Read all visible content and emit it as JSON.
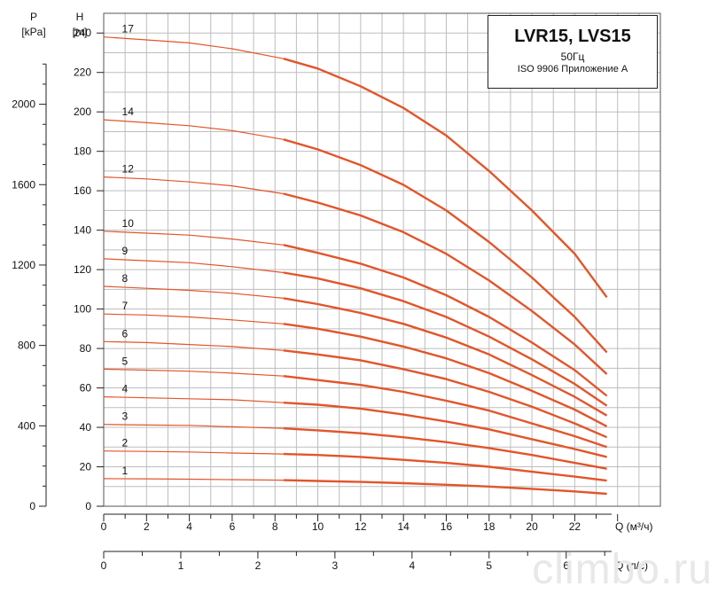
{
  "title": {
    "main": "LVR15, LVS15",
    "freq": "50Гц",
    "standard": "ISO 9906 Приложение А"
  },
  "watermark": "climbo.ru",
  "axes": {
    "p_label": "P",
    "p_unit": "[kPa]",
    "h_label": "H",
    "h_unit": "[m]",
    "q_label": "Q (м³/ч)",
    "q2_label": "Q (л/с)"
  },
  "chart_data": {
    "type": "line",
    "x_unit": "Q (м³/ч)",
    "y_unit": "H [m]",
    "xlim": [
      0,
      26
    ],
    "ylim": [
      0,
      250
    ],
    "xticks": [
      0,
      2,
      4,
      6,
      8,
      10,
      12,
      14,
      16,
      18,
      20,
      22
    ],
    "yticks": [
      0,
      20,
      40,
      60,
      80,
      100,
      120,
      140,
      160,
      180,
      200,
      220,
      240
    ],
    "p_ticks": [
      0,
      400,
      800,
      1200,
      1600,
      2000
    ],
    "q2_ticks": [
      0,
      1,
      2,
      3,
      4,
      5,
      6
    ],
    "grid": true,
    "series": [
      {
        "name": "17",
        "x": [
          0,
          2,
          4,
          6,
          8.4,
          10,
          12,
          14,
          16,
          18,
          20,
          22,
          23.5
        ],
        "y": [
          238,
          236.5,
          235,
          232,
          227,
          222,
          213,
          202,
          188,
          170,
          150,
          128,
          106
        ]
      },
      {
        "name": "14",
        "x": [
          0,
          2,
          4,
          6,
          8.4,
          10,
          12,
          14,
          16,
          18,
          20,
          22,
          23.5
        ],
        "y": [
          196,
          194.5,
          193,
          190.5,
          186,
          181,
          173,
          163,
          150,
          134,
          116,
          96,
          78
        ]
      },
      {
        "name": "12",
        "x": [
          0,
          2,
          4,
          6,
          8.4,
          10,
          12,
          14,
          16,
          18,
          20,
          22,
          23.5
        ],
        "y": [
          167,
          166,
          164.5,
          162.5,
          158.5,
          154,
          147.5,
          139,
          128,
          114.5,
          99,
          82,
          67
        ]
      },
      {
        "name": "10",
        "x": [
          0,
          2,
          4,
          6,
          8.4,
          10,
          12,
          14,
          16,
          18,
          20,
          22,
          23.5
        ],
        "y": [
          139.5,
          138.5,
          137.5,
          135.5,
          132.5,
          128.5,
          123,
          116,
          107,
          96,
          83,
          69,
          56
        ]
      },
      {
        "name": "9",
        "x": [
          0,
          2,
          4,
          6,
          8.4,
          10,
          12,
          14,
          16,
          18,
          20,
          22,
          23.5
        ],
        "y": [
          125.5,
          124.5,
          123.5,
          121.5,
          118.5,
          115.5,
          110.5,
          104,
          96,
          86,
          74.5,
          62,
          51
        ]
      },
      {
        "name": "8",
        "x": [
          0,
          2,
          4,
          6,
          8.4,
          10,
          12,
          14,
          16,
          18,
          20,
          22,
          23.5
        ],
        "y": [
          111.5,
          110.5,
          109.5,
          108,
          105.5,
          102.5,
          98,
          92.5,
          85.5,
          77,
          66.5,
          55.5,
          46
        ]
      },
      {
        "name": "7",
        "x": [
          0,
          2,
          4,
          6,
          8.4,
          10,
          12,
          14,
          16,
          18,
          20,
          22,
          23.5
        ],
        "y": [
          97.5,
          97,
          96,
          94.5,
          92.5,
          90,
          86,
          81,
          75,
          67.5,
          58.5,
          49,
          40.5
        ]
      },
      {
        "name": "6",
        "x": [
          0,
          2,
          4,
          6,
          8.4,
          10,
          12,
          14,
          16,
          18,
          20,
          22,
          23.5
        ],
        "y": [
          83.5,
          83,
          82,
          81,
          79,
          77,
          74,
          69.5,
          64.5,
          58,
          50.5,
          42,
          35
        ]
      },
      {
        "name": "5",
        "x": [
          0,
          2,
          4,
          6,
          8.4,
          10,
          12,
          14,
          16,
          18,
          20,
          22,
          23.5
        ],
        "y": [
          69.5,
          69,
          68.5,
          67.5,
          66,
          64,
          61.5,
          58,
          53.5,
          48.5,
          42,
          35.5,
          30
        ]
      },
      {
        "name": "4",
        "x": [
          0,
          2,
          4,
          6,
          8.4,
          10,
          12,
          14,
          16,
          18,
          20,
          22,
          23.5
        ],
        "y": [
          55.5,
          55,
          54.5,
          54,
          52.5,
          51.5,
          49.5,
          46.5,
          43,
          39,
          34,
          29,
          25
        ]
      },
      {
        "name": "3",
        "x": [
          0,
          2,
          4,
          6,
          8.4,
          10,
          12,
          14,
          16,
          18,
          20,
          22,
          23.5
        ],
        "y": [
          41.5,
          41.2,
          41,
          40.3,
          39.5,
          38.5,
          37,
          35,
          32.5,
          29.5,
          26,
          22,
          19
        ]
      },
      {
        "name": "2",
        "x": [
          0,
          2,
          4,
          6,
          8.4,
          10,
          12,
          14,
          16,
          18,
          20,
          22,
          23.5
        ],
        "y": [
          28,
          27.8,
          27.5,
          27,
          26.5,
          26,
          25,
          23.5,
          22,
          20,
          17.5,
          15,
          13
        ]
      },
      {
        "name": "1",
        "x": [
          0,
          2,
          4,
          6,
          8.4,
          10,
          12,
          14,
          16,
          18,
          20,
          22,
          23.5
        ],
        "y": [
          14,
          13.9,
          13.7,
          13.5,
          13.2,
          12.8,
          12.3,
          11.7,
          10.9,
          10,
          8.8,
          7.5,
          6.3
        ]
      }
    ],
    "line_color": "#e2552a"
  }
}
